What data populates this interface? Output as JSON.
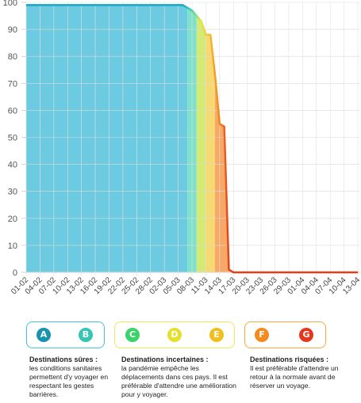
{
  "chart_data": {
    "type": "area",
    "x_tick_labels": [
      "01-02",
      "04-02",
      "07-02",
      "10-02",
      "13-02",
      "16-02",
      "19-02",
      "22-02",
      "25-02",
      "28-02",
      "02-03",
      "05-03",
      "08-03",
      "11-03",
      "14-03",
      "17-03",
      "20-03",
      "23-03",
      "26-03",
      "29-03",
      "01-04",
      "04-04",
      "07-04",
      "10-04",
      "13-04"
    ],
    "ylim": [
      0,
      100
    ],
    "y_ticks": [
      0,
      10,
      20,
      30,
      40,
      50,
      60,
      70,
      80,
      90,
      100
    ],
    "grid": true,
    "series": [
      {
        "x": [
          "01-02",
          "19-02",
          "06-03",
          "08-03",
          "10-03",
          "11-03",
          "12-03",
          "13-03",
          "14-03",
          "15-03",
          "16-03",
          "17-03",
          "13-04"
        ],
        "values": [
          99,
          99,
          99,
          97,
          93,
          88,
          88,
          73,
          55,
          54,
          1,
          0,
          0
        ]
      }
    ],
    "bands": [
      {
        "start": "01-02",
        "end": "07-03",
        "color": "#6ccbe0"
      },
      {
        "start": "07-03",
        "end": "09-03",
        "color": "#7fe0cc"
      },
      {
        "start": "09-03",
        "end": "11-03",
        "color": "#d4ea74"
      },
      {
        "start": "11-03",
        "end": "13-03",
        "color": "#f6d972"
      },
      {
        "start": "13-03",
        "end": "16-03",
        "color": "#f8a866"
      },
      {
        "start": "16-03",
        "end": "13-04",
        "color": "#f6b5a4"
      }
    ]
  },
  "legend": {
    "groups": [
      {
        "border": "#45c2dc",
        "badges": [
          {
            "letter": "A",
            "color": "#1a93b0"
          },
          {
            "letter": "B",
            "color": "#35c6b4"
          }
        ]
      },
      {
        "border": "#f2e65a",
        "badges": [
          {
            "letter": "C",
            "color": "#3bd36a"
          },
          {
            "letter": "D",
            "color": "#e4e02d"
          },
          {
            "letter": "E",
            "color": "#f1bf1d"
          }
        ]
      },
      {
        "border": "#f8a83c",
        "badges": [
          {
            "letter": "F",
            "color": "#f58a20"
          },
          {
            "letter": "G",
            "color": "#e4371c"
          }
        ]
      }
    ],
    "captions": [
      {
        "title": "Destinations sûres :",
        "text": "les conditions sanitaires permettent d'y voyager en respectant les gestes barrières."
      },
      {
        "title": "Destinations incertaines :",
        "text": "la pandémie empêche les déplacements dans ces pays. Il est préférable d'attendre une amélioration pour y voyager."
      },
      {
        "title": "Destinations risquées :",
        "text": "Il est préférable d'attendre un retour à la normale avant de réserver un voyage."
      }
    ]
  }
}
